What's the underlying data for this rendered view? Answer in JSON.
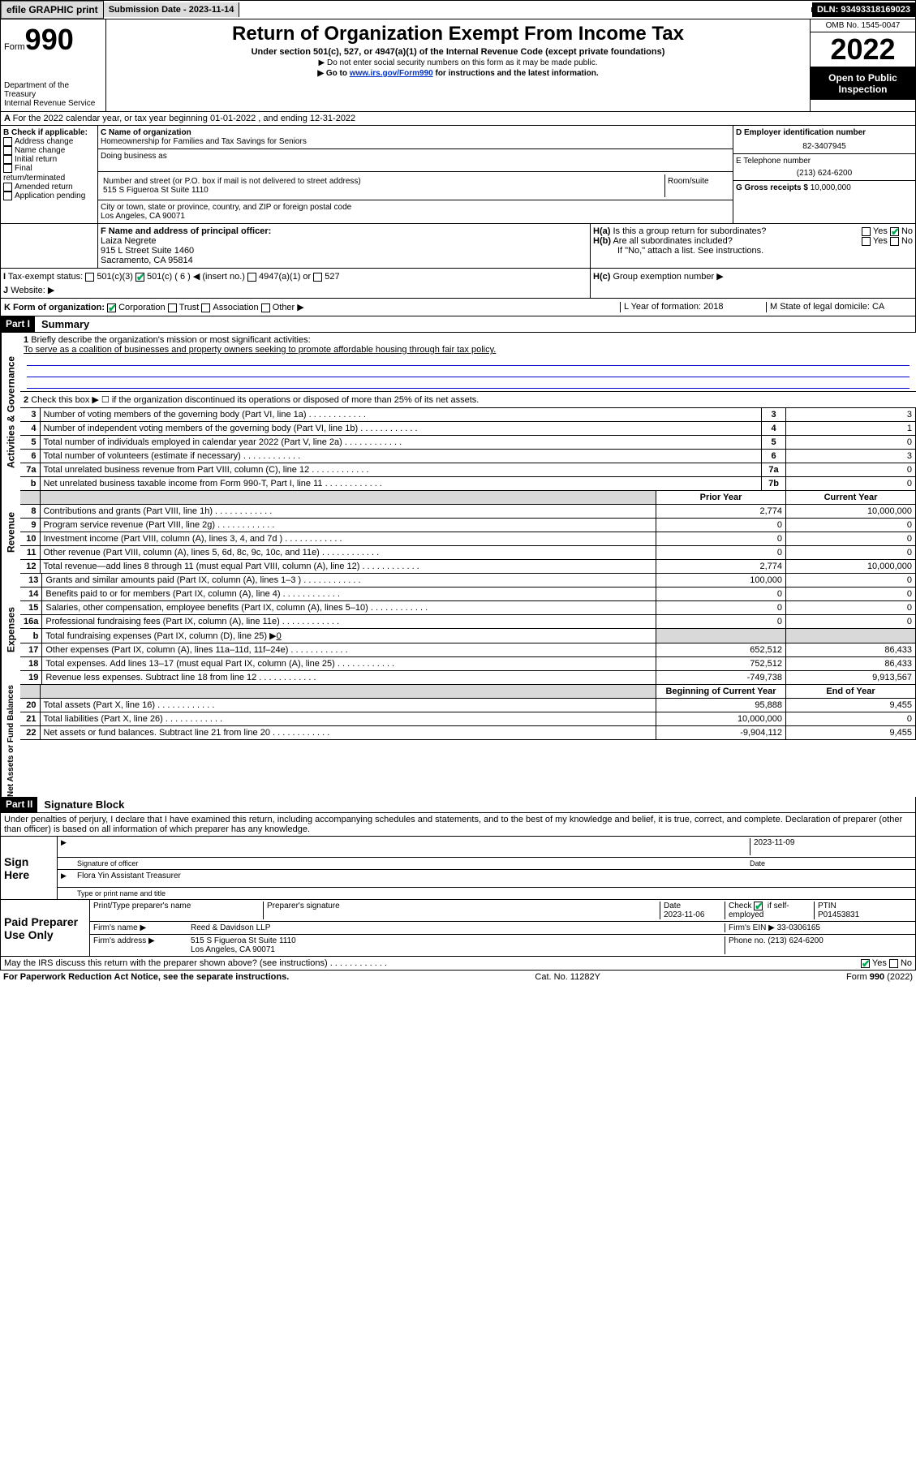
{
  "topbar": {
    "efile": "efile GRAPHIC print",
    "sub_label": "Submission Date - 2023-11-14",
    "dln": "DLN: 93493318169023"
  },
  "header": {
    "form_prefix": "Form",
    "form_no": "990",
    "title": "Return of Organization Exempt From Income Tax",
    "subtitle": "Under section 501(c), 527, or 4947(a)(1) of the Internal Revenue Code (except private foundations)",
    "note1": "▶ Do not enter social security numbers on this form as it may be made public.",
    "note2_pre": "▶ Go to ",
    "note2_link": "www.irs.gov/Form990",
    "note2_post": " for instructions and the latest information.",
    "dept": "Department of the Treasury\nInternal Revenue Service",
    "omb": "OMB No. 1545-0047",
    "year": "2022",
    "inspection": "Open to Public Inspection"
  },
  "periodA": "For the 2022 calendar year, or tax year beginning 01-01-2022   , and ending 12-31-2022",
  "B": {
    "label": "B Check if applicable:",
    "items": [
      "Address change",
      "Name change",
      "Initial return",
      "Final return/terminated",
      "Amended return",
      "Application pending"
    ]
  },
  "C": {
    "name_label": "C Name of organization",
    "name": "Homeownership for Families and Tax Savings for Seniors",
    "dba_label": "Doing business as",
    "street_label": "Number and street (or P.O. box if mail is not delivered to street address)",
    "room_label": "Room/suite",
    "street": "515 S Figueroa St Suite 1110",
    "city_label": "City or town, state or province, country, and ZIP or foreign postal code",
    "city": "Los Angeles, CA  90071"
  },
  "D": {
    "label": "D Employer identification number",
    "value": "82-3407945"
  },
  "E": {
    "label": "E Telephone number",
    "value": "(213) 624-6200"
  },
  "G": {
    "label": "G Gross receipts $",
    "value": "10,000,000"
  },
  "F": {
    "label": "F  Name and address of principal officer:",
    "name": "Laiza Negrete",
    "addr1": "915 L Street Suite 1460",
    "addr2": "Sacramento, CA  95814"
  },
  "H": {
    "a": "Is this a group return for subordinates?",
    "b": "Are all subordinates included?",
    "note": "If \"No,\" attach a list. See instructions.",
    "c": "Group exemption number ▶"
  },
  "I": {
    "label": "Tax-exempt status:",
    "opts": [
      "501(c)(3)",
      "501(c) ( 6 ) ◀ (insert no.)",
      "4947(a)(1) or",
      "527"
    ]
  },
  "J": {
    "label": "Website: ▶"
  },
  "K": {
    "label": "K Form of organization:",
    "opts": [
      "Corporation",
      "Trust",
      "Association",
      "Other ▶"
    ]
  },
  "L": {
    "label": "L Year of formation: 2018"
  },
  "M": {
    "label": "M State of legal domicile: CA"
  },
  "part1": {
    "bar": "Part I",
    "title": "Summary",
    "q1": "Briefly describe the organization's mission or most significant activities:",
    "mission": "To serve as a coalition of businesses and property owners seeking to promote affordable housing through fair tax policy.",
    "q2": "Check this box ▶ ☐  if the organization discontinued its operations or disposed of more than 25% of its net assets.",
    "side_act": "Activities & Governance",
    "side_rev": "Revenue",
    "side_exp": "Expenses",
    "side_net": "Net Assets or Fund Balances",
    "hdr_prior": "Prior Year",
    "hdr_curr": "Current Year",
    "hdr_boy": "Beginning of Current Year",
    "hdr_eoy": "End of Year"
  },
  "rows_gov": [
    {
      "n": "3",
      "d": "Number of voting members of the governing body (Part VI, line 1a)",
      "l": "3",
      "v": "3"
    },
    {
      "n": "4",
      "d": "Number of independent voting members of the governing body (Part VI, line 1b)",
      "l": "4",
      "v": "1"
    },
    {
      "n": "5",
      "d": "Total number of individuals employed in calendar year 2022 (Part V, line 2a)",
      "l": "5",
      "v": "0"
    },
    {
      "n": "6",
      "d": "Total number of volunteers (estimate if necessary)",
      "l": "6",
      "v": "3"
    },
    {
      "n": "7a",
      "d": "Total unrelated business revenue from Part VIII, column (C), line 12",
      "l": "7a",
      "v": "0"
    },
    {
      "n": "b",
      "d": "Net unrelated business taxable income from Form 990-T, Part I, line 11",
      "l": "7b",
      "v": "0"
    }
  ],
  "rows_rev": [
    {
      "n": "8",
      "d": "Contributions and grants (Part VIII, line 1h)",
      "p": "2,774",
      "c": "10,000,000"
    },
    {
      "n": "9",
      "d": "Program service revenue (Part VIII, line 2g)",
      "p": "0",
      "c": "0"
    },
    {
      "n": "10",
      "d": "Investment income (Part VIII, column (A), lines 3, 4, and 7d )",
      "p": "0",
      "c": "0"
    },
    {
      "n": "11",
      "d": "Other revenue (Part VIII, column (A), lines 5, 6d, 8c, 9c, 10c, and 11e)",
      "p": "0",
      "c": "0"
    },
    {
      "n": "12",
      "d": "Total revenue—add lines 8 through 11 (must equal Part VIII, column (A), line 12)",
      "p": "2,774",
      "c": "10,000,000"
    }
  ],
  "rows_exp": [
    {
      "n": "13",
      "d": "Grants and similar amounts paid (Part IX, column (A), lines 1–3 )",
      "p": "100,000",
      "c": "0"
    },
    {
      "n": "14",
      "d": "Benefits paid to or for members (Part IX, column (A), line 4)",
      "p": "0",
      "c": "0"
    },
    {
      "n": "15",
      "d": "Salaries, other compensation, employee benefits (Part IX, column (A), lines 5–10)",
      "p": "0",
      "c": "0"
    },
    {
      "n": "16a",
      "d": "Professional fundraising fees (Part IX, column (A), line 11e)",
      "p": "0",
      "c": "0"
    }
  ],
  "row_16b": {
    "n": "b",
    "d": "Total fundraising expenses (Part IX, column (D), line 25) ▶",
    "v": "0"
  },
  "rows_exp2": [
    {
      "n": "17",
      "d": "Other expenses (Part IX, column (A), lines 11a–11d, 11f–24e)",
      "p": "652,512",
      "c": "86,433"
    },
    {
      "n": "18",
      "d": "Total expenses. Add lines 13–17 (must equal Part IX, column (A), line 25)",
      "p": "752,512",
      "c": "86,433"
    },
    {
      "n": "19",
      "d": "Revenue less expenses. Subtract line 18 from line 12",
      "p": "-749,738",
      "c": "9,913,567"
    }
  ],
  "rows_net": [
    {
      "n": "20",
      "d": "Total assets (Part X, line 16)",
      "p": "95,888",
      "c": "9,455"
    },
    {
      "n": "21",
      "d": "Total liabilities (Part X, line 26)",
      "p": "10,000,000",
      "c": "0"
    },
    {
      "n": "22",
      "d": "Net assets or fund balances. Subtract line 21 from line 20",
      "p": "-9,904,112",
      "c": "9,455"
    }
  ],
  "part2": {
    "bar": "Part II",
    "title": "Signature Block",
    "decl": "Under penalties of perjury, I declare that I have examined this return, including accompanying schedules and statements, and to the best of my knowledge and belief, it is true, correct, and complete. Declaration of preparer (other than officer) is based on all information of which preparer has any knowledge."
  },
  "sign": {
    "label": "Sign Here",
    "sig_label": "Signature of officer",
    "date_label": "Date",
    "date": "2023-11-09",
    "name": "Flora Yin  Assistant Treasurer",
    "name_label": "Type or print name and title"
  },
  "prep": {
    "label": "Paid Preparer Use Only",
    "c1": "Print/Type preparer's name",
    "c2": "Preparer's signature",
    "c3": "Date",
    "c3v": "2023-11-06",
    "c4": "Check ☑ if self-employed",
    "c5": "PTIN",
    "c5v": "P01453831",
    "firm": "Firm's name   ▶",
    "firmv": "Reed & Davidson LLP",
    "ein": "Firm's EIN ▶",
    "einv": "33-0306165",
    "addr": "Firm's address ▶",
    "addrv": "515 S Figueroa St Suite 1110",
    "addrv2": "Los Angeles, CA  90071",
    "phone": "Phone no.",
    "phonev": "(213) 624-6200"
  },
  "discuss": "May the IRS discuss this return with the preparer shown above? (see instructions)",
  "footer": {
    "left": "For Paperwork Reduction Act Notice, see the separate instructions.",
    "mid": "Cat. No. 11282Y",
    "right": "Form 990 (2022)"
  }
}
